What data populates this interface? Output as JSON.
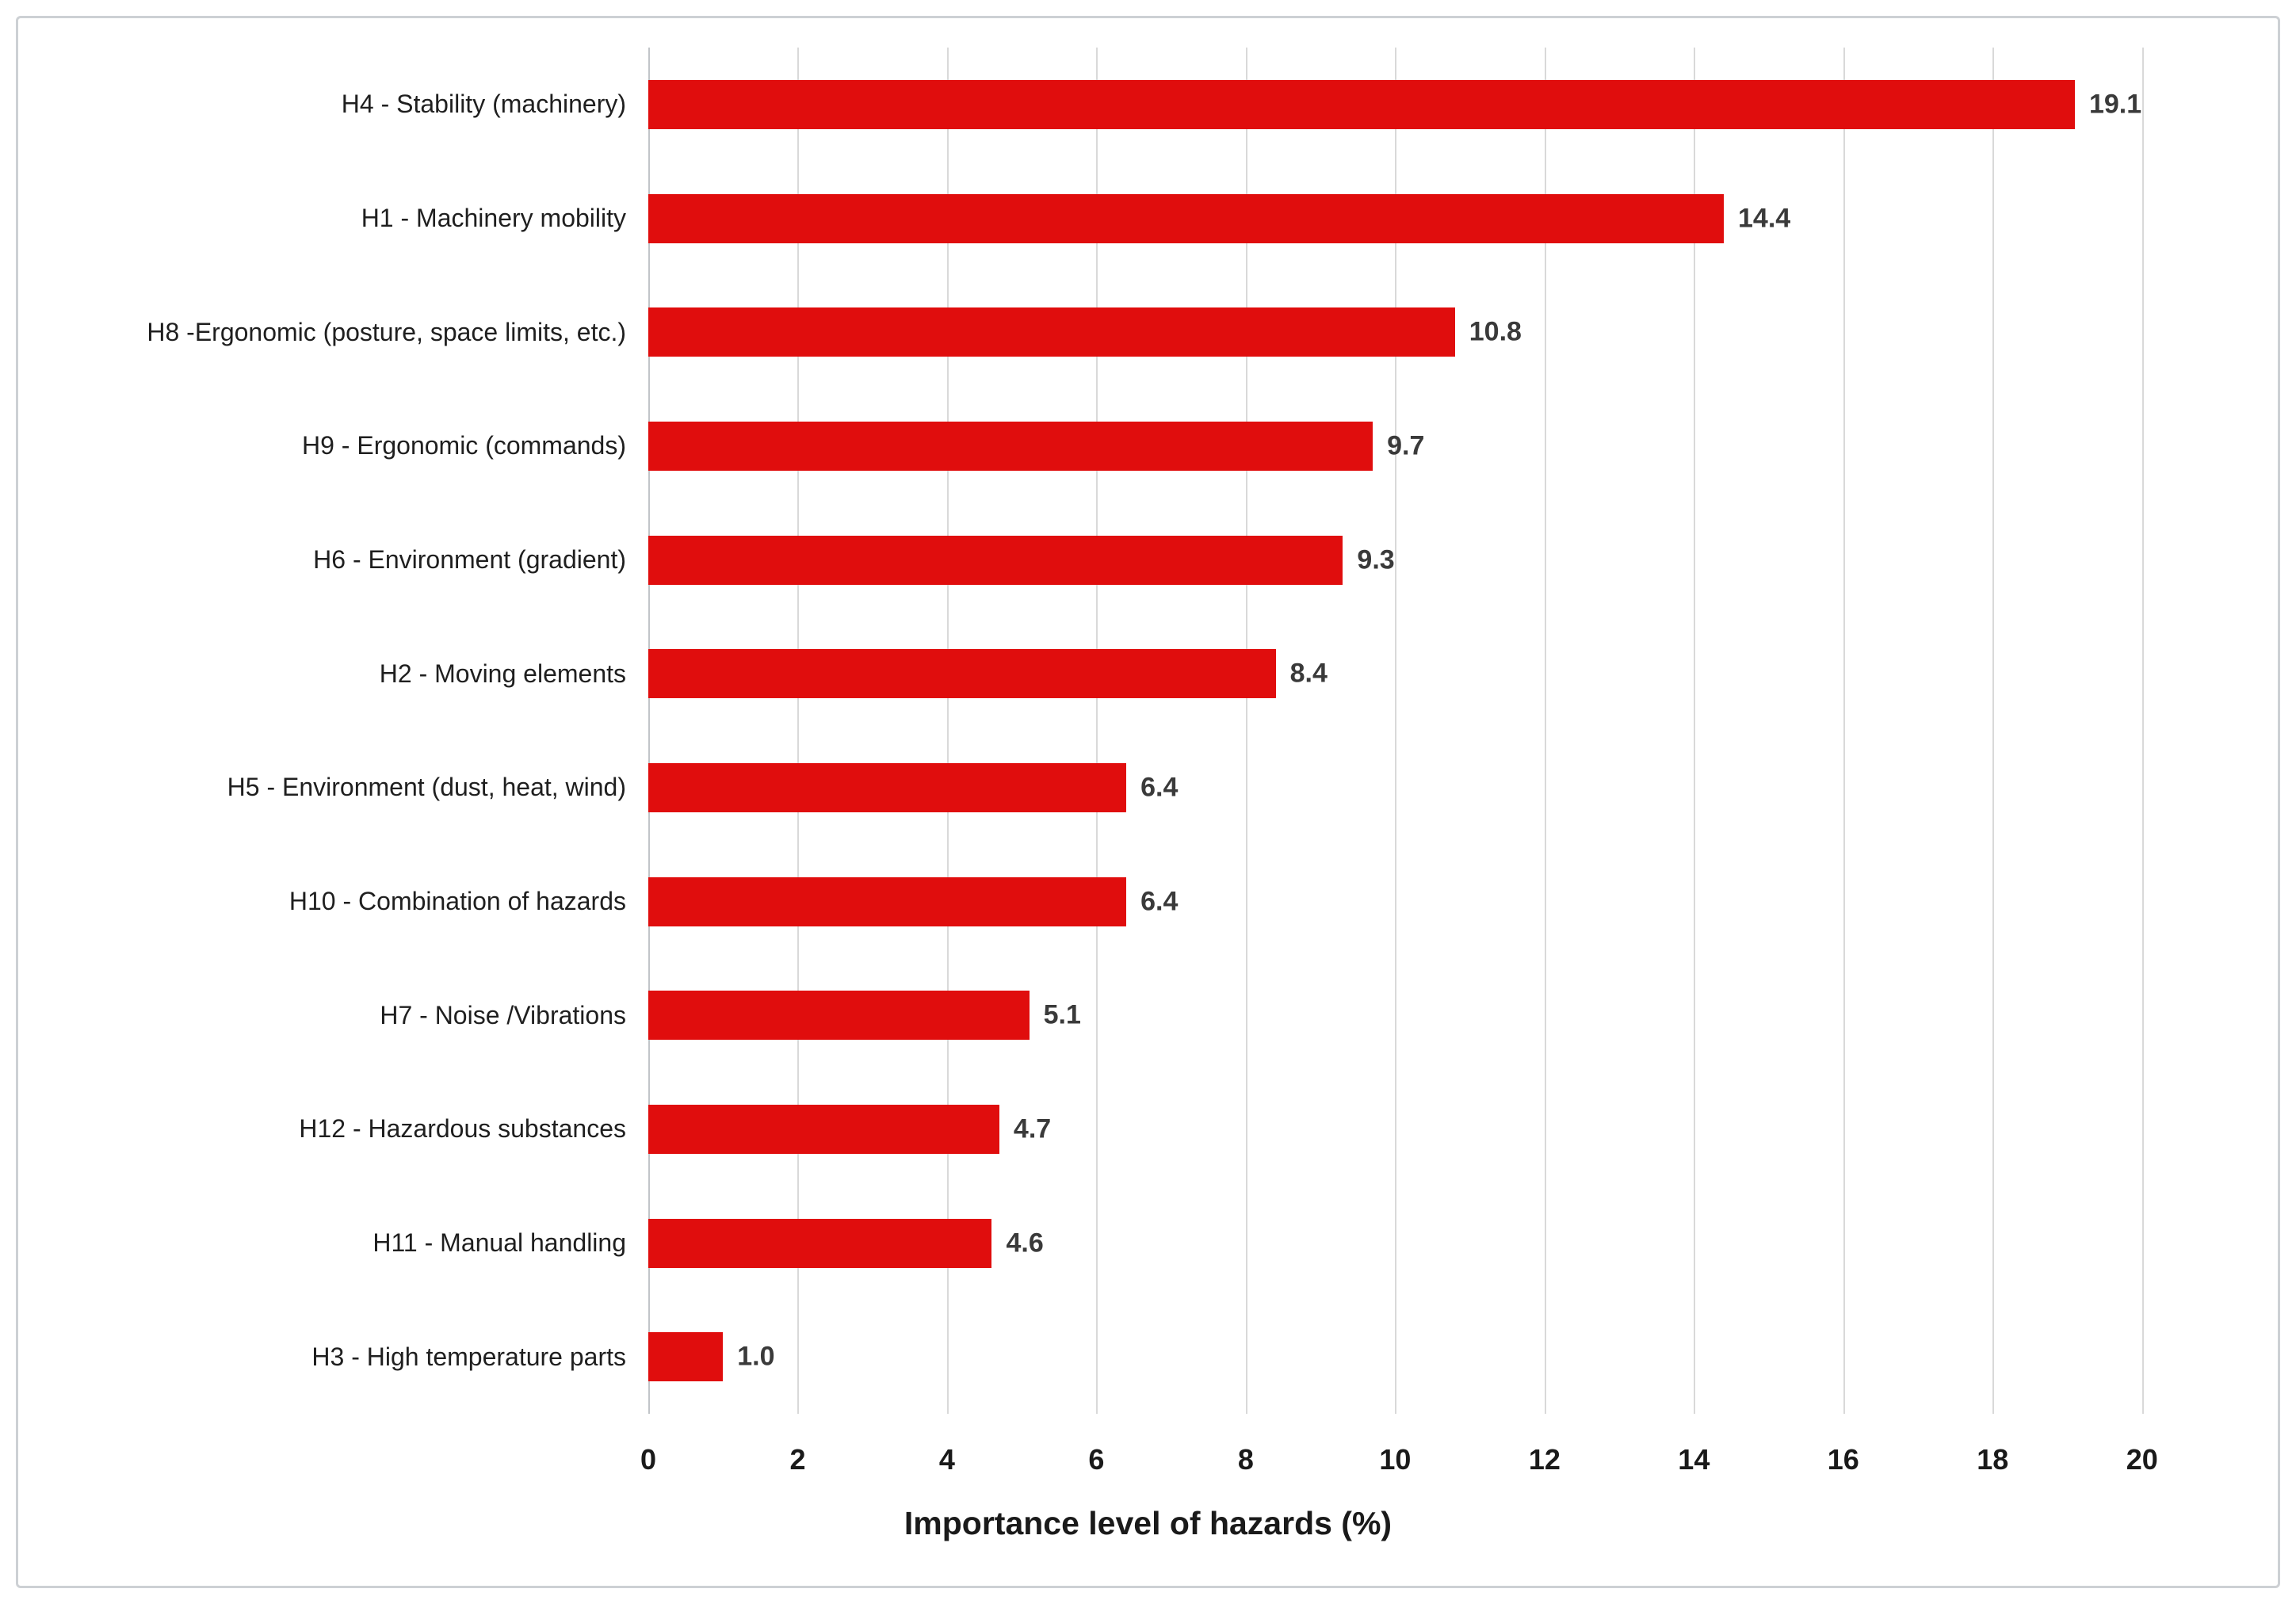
{
  "chart_data": {
    "type": "bar",
    "orientation": "horizontal",
    "title": "",
    "xlabel": "Importance level of hazards (%)",
    "ylabel": "",
    "categories": [
      "H4 - Stability (machinery)",
      "H1 - Machinery mobility",
      "H8 -Ergonomic (posture, space limits, etc.)",
      "H9 - Ergonomic (commands)",
      "H6 - Environment (gradient)",
      "H2 - Moving elements",
      "H5 - Environment (dust, heat, wind)",
      "H10 - Combination of hazards",
      "H7 - Noise /Vibrations",
      "H12 - Hazardous substances",
      "H11 - Manual handling",
      "H3 - High temperature parts"
    ],
    "values": [
      19.1,
      14.4,
      10.8,
      9.7,
      9.3,
      8.4,
      6.4,
      6.4,
      5.1,
      4.7,
      4.6,
      1.0
    ],
    "value_labels": [
      "19.1",
      "14.4",
      "10.8",
      "9.7",
      "9.3",
      "8.4",
      "6.4",
      "6.4",
      "5.1",
      "4.7",
      "4.6",
      "1.0"
    ],
    "xlim": [
      0,
      21
    ],
    "xticks": [
      0,
      2,
      4,
      6,
      8,
      10,
      12,
      14,
      16,
      18,
      20
    ],
    "xtick_labels": [
      "0",
      "2",
      "4",
      "6",
      "8",
      "10",
      "12",
      "14",
      "16",
      "18",
      "20"
    ],
    "grid": "vertical gridlines on",
    "legend": "none",
    "colors": {
      "bar": "#e00d0d",
      "gridline": "#d9d9d9",
      "axis_line": "#c2c5c9",
      "value_label": "#3a3a3a",
      "text": "#1f1f1f"
    }
  }
}
